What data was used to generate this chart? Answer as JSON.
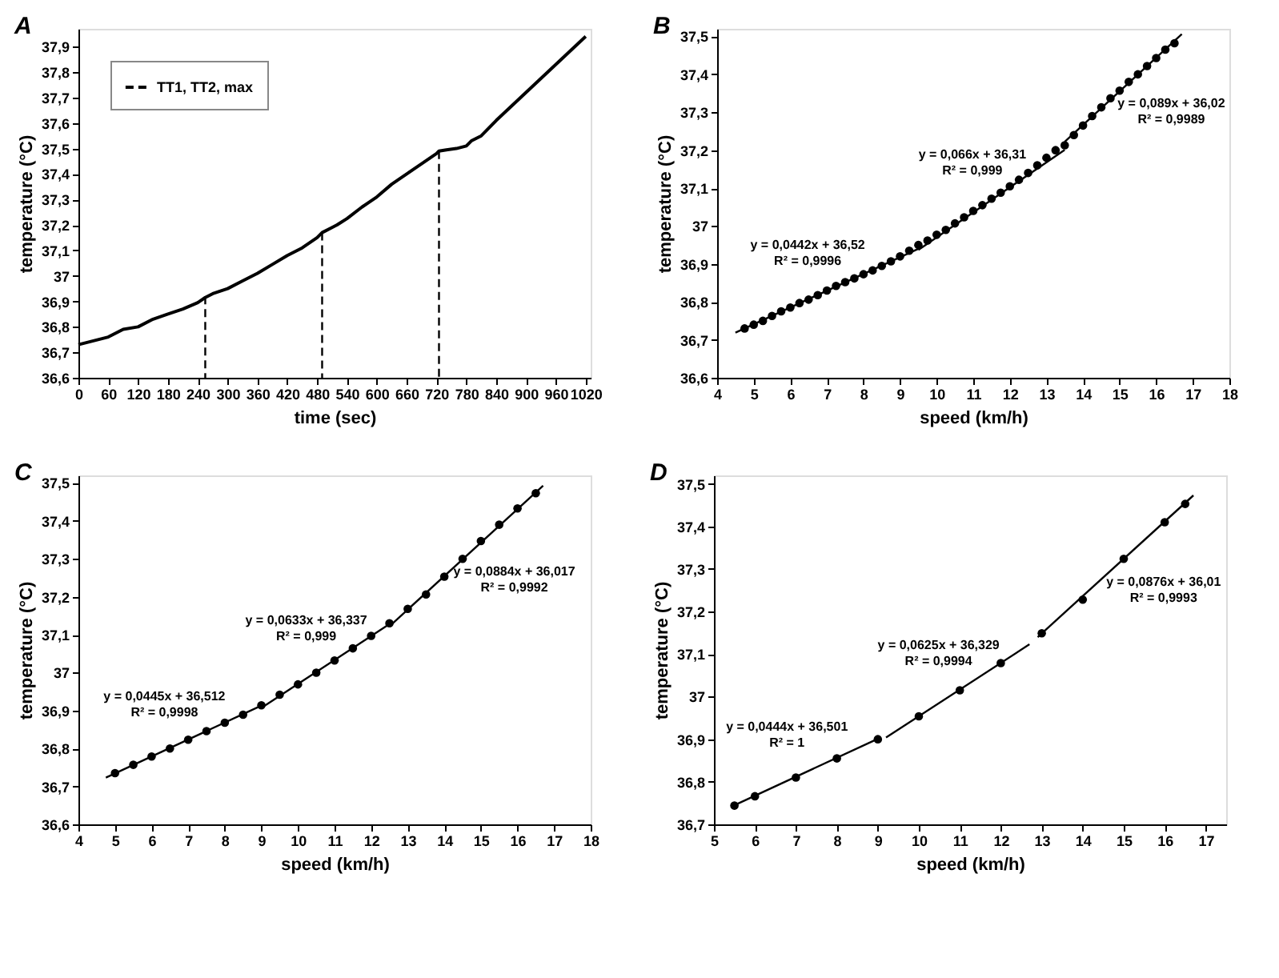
{
  "chart_data": [
    {
      "type": "line",
      "title": "A",
      "xlabel": "time (sec)",
      "ylabel": "temperature (°C)",
      "xlim": [
        0,
        1030
      ],
      "ylim": [
        36.6,
        37.97
      ],
      "grid": false,
      "legend": "top left",
      "xticks": [
        0,
        60,
        120,
        180,
        240,
        300,
        360,
        420,
        480,
        540,
        600,
        660,
        720,
        780,
        840,
        900,
        960,
        1020
      ],
      "yticks": [
        {
          "value": 36.6,
          "label": "36,6"
        },
        {
          "value": 36.7,
          "label": "36,7"
        },
        {
          "value": 36.8,
          "label": "36,8"
        },
        {
          "value": 36.9,
          "label": "36,9"
        },
        {
          "value": 37,
          "label": "37"
        },
        {
          "value": 37.1,
          "label": "37,1"
        },
        {
          "value": 37.2,
          "label": "37,2"
        },
        {
          "value": 37.3,
          "label": "37,3"
        },
        {
          "value": 37.4,
          "label": "37,4"
        },
        {
          "value": 37.5,
          "label": "37,5"
        },
        {
          "value": 37.6,
          "label": "37,6"
        },
        {
          "value": 37.7,
          "label": "37,7"
        },
        {
          "value": 37.8,
          "label": "37,8"
        },
        {
          "value": 37.9,
          "label": "37,9"
        }
      ],
      "series": [
        {
          "color": "#000000",
          "x": [
            0,
            30,
            60,
            90,
            120,
            150,
            180,
            210,
            240,
            255,
            270,
            300,
            330,
            360,
            390,
            420,
            450,
            480,
            490,
            510,
            520,
            540,
            570,
            600,
            630,
            660,
            690,
            720,
            725,
            740,
            760,
            780,
            790,
            810,
            840,
            870,
            900,
            930,
            960,
            990,
            1020
          ],
          "values": [
            36.73,
            36.745,
            36.76,
            36.79,
            36.8,
            36.83,
            36.85,
            36.87,
            36.895,
            36.915,
            36.93,
            36.95,
            36.98,
            37.01,
            37.045,
            37.08,
            37.11,
            37.15,
            37.17,
            37.19,
            37.2,
            37.225,
            37.27,
            37.31,
            37.36,
            37.4,
            37.44,
            37.48,
            37.49,
            37.495,
            37.5,
            37.51,
            37.53,
            37.55,
            37.61,
            37.665,
            37.72,
            37.775,
            37.83,
            37.885,
            37.94
          ]
        },
        {
          "name": "TT1, TT2, max",
          "color": "#000000",
          "line_style": "dashed",
          "x": [
            255,
            255,
            null,
            490,
            490,
            null,
            725,
            725
          ],
          "values": [
            36.92,
            36.6,
            null,
            37.17,
            36.6,
            null,
            37.49,
            36.6
          ]
        }
      ]
    },
    {
      "type": "scatter",
      "title": "B",
      "xlabel": "speed (km/h)",
      "ylabel": "temperature (°C)",
      "xlim": [
        4,
        18
      ],
      "ylim": [
        36.6,
        37.52
      ],
      "grid": false,
      "xticks": [
        4,
        5,
        6,
        7,
        8,
        9,
        10,
        11,
        12,
        13,
        14,
        15,
        16,
        17,
        18
      ],
      "yticks": [
        {
          "value": 36.6,
          "label": "36,6"
        },
        {
          "value": 36.7,
          "label": "36,7"
        },
        {
          "value": 36.8,
          "label": "36,8"
        },
        {
          "value": 36.9,
          "label": "36,9"
        },
        {
          "value": 37,
          "label": "37"
        },
        {
          "value": 37.1,
          "label": "37,1"
        },
        {
          "value": 37.2,
          "label": "37,2"
        },
        {
          "value": 37.3,
          "label": "37,3"
        },
        {
          "value": 37.4,
          "label": "37,4"
        },
        {
          "value": 37.5,
          "label": "37,5"
        }
      ],
      "series": [
        {
          "color": "#000000",
          "marker": "circle",
          "x": [
            4.75,
            5,
            5.25,
            5.5,
            5.75,
            6,
            6.25,
            6.5,
            6.75,
            7,
            7.25,
            7.5,
            7.75,
            8,
            8.25,
            8.5,
            8.75,
            9,
            9.25,
            9.5,
            9.75,
            10,
            10.25,
            10.5,
            10.75,
            11,
            11.25,
            11.5,
            11.75,
            12,
            12.25,
            12.5,
            12.75,
            13,
            13.25,
            13.5,
            13.75,
            14,
            14.25,
            14.5,
            14.75,
            15,
            15.25,
            15.5,
            15.75,
            16,
            16.25,
            16.5
          ],
          "values": [
            36.73,
            36.74,
            36.75,
            36.763,
            36.775,
            36.785,
            36.797,
            36.806,
            36.818,
            36.83,
            36.842,
            36.852,
            36.862,
            36.873,
            36.883,
            36.895,
            36.907,
            36.92,
            36.935,
            36.95,
            36.962,
            36.977,
            36.99,
            37.007,
            37.023,
            37.04,
            37.055,
            37.072,
            37.088,
            37.105,
            37.122,
            37.14,
            37.16,
            37.18,
            37.2,
            37.213,
            37.24,
            37.265,
            37.29,
            37.313,
            37.337,
            37.357,
            37.38,
            37.4,
            37.422,
            37.443,
            37.465,
            37.482
          ]
        },
        {
          "type": "line",
          "color": "#000000",
          "x": [
            4.5,
            9.5
          ],
          "values": [
            36.719,
            36.94
          ]
        },
        {
          "type": "line",
          "color": "#000000",
          "x": [
            9.5,
            13.5
          ],
          "values": [
            36.937,
            37.201
          ]
        },
        {
          "type": "line",
          "color": "#000000",
          "x": [
            13.5,
            16.7
          ],
          "values": [
            37.222,
            37.506
          ]
        }
      ],
      "annotations": [
        "y = 0,0442x + 36,52",
        "R² = 0,9996",
        "y = 0,066x + 36,31",
        "R² = 0,999",
        "y = 0,089x + 36,02",
        "R² = 0,9989"
      ]
    },
    {
      "type": "scatter",
      "title": "C",
      "xlabel": "speed (km/h)",
      "ylabel": "temperature (°C)",
      "xlim": [
        4,
        18
      ],
      "ylim": [
        36.6,
        37.52
      ],
      "grid": false,
      "xticks": [
        4,
        5,
        6,
        7,
        8,
        9,
        10,
        11,
        12,
        13,
        14,
        15,
        16,
        17,
        18
      ],
      "yticks": [
        {
          "value": 36.6,
          "label": "36,6"
        },
        {
          "value": 36.7,
          "label": "36,7"
        },
        {
          "value": 36.8,
          "label": "36,8"
        },
        {
          "value": 36.9,
          "label": "36,9"
        },
        {
          "value": 37,
          "label": "37"
        },
        {
          "value": 37.1,
          "label": "37,1"
        },
        {
          "value": 37.2,
          "label": "37,2"
        },
        {
          "value": 37.3,
          "label": "37,3"
        },
        {
          "value": 37.4,
          "label": "37,4"
        },
        {
          "value": 37.5,
          "label": "37,5"
        }
      ],
      "series": [
        {
          "color": "#000000",
          "marker": "circle",
          "x": [
            5,
            5.5,
            6,
            6.5,
            7,
            7.5,
            8,
            8.5,
            9,
            9.5,
            10,
            10.5,
            11,
            11.5,
            12,
            12.5,
            13,
            13.5,
            14,
            14.5,
            15,
            15.5,
            16,
            16.5
          ],
          "values": [
            36.735,
            36.757,
            36.779,
            36.8,
            36.823,
            36.846,
            36.868,
            36.889,
            36.914,
            36.942,
            36.969,
            37.0,
            37.032,
            37.064,
            37.097,
            37.13,
            37.168,
            37.206,
            37.253,
            37.3,
            37.347,
            37.39,
            37.433,
            37.473
          ]
        },
        {
          "type": "line",
          "color": "#000000",
          "x": [
            4.75,
            9
          ],
          "values": [
            36.723,
            36.913
          ]
        },
        {
          "type": "line",
          "color": "#000000",
          "x": [
            9,
            12.5
          ],
          "values": [
            36.907,
            37.128
          ]
        },
        {
          "type": "line",
          "color": "#000000",
          "x": [
            12.5,
            16.7
          ],
          "values": [
            37.122,
            37.493
          ]
        }
      ],
      "annotations": [
        "y = 0,0445x + 36,512",
        "R² = 0,9998",
        "y = 0,0633x + 36,337",
        "R² = 0,999",
        "y = 0,0884x + 36,017",
        "R² = 0,9992"
      ]
    },
    {
      "type": "scatter",
      "title": "D",
      "xlabel": "speed (km/h)",
      "ylabel": "temperature (°C)",
      "xlim": [
        5,
        17.5
      ],
      "ylim": [
        36.7,
        37.52
      ],
      "grid": false,
      "xticks": [
        5,
        6,
        7,
        8,
        9,
        10,
        11,
        12,
        13,
        14,
        15,
        16,
        17
      ],
      "yticks": [
        {
          "value": 36.7,
          "label": "36,7"
        },
        {
          "value": 36.8,
          "label": "36,8"
        },
        {
          "value": 36.9,
          "label": "36,9"
        },
        {
          "value": 37,
          "label": "37"
        },
        {
          "value": 37.1,
          "label": "37,1"
        },
        {
          "value": 37.2,
          "label": "37,2"
        },
        {
          "value": 37.3,
          "label": "37,3"
        },
        {
          "value": 37.4,
          "label": "37,4"
        },
        {
          "value": 37.5,
          "label": "37,5"
        }
      ],
      "series": [
        {
          "color": "#000000",
          "marker": "circle",
          "x": [
            5.5,
            6,
            7,
            8,
            9,
            10,
            11,
            12,
            13,
            14,
            15,
            16,
            16.5
          ],
          "values": [
            36.744,
            36.766,
            36.81,
            36.855,
            36.9,
            36.954,
            37.015,
            37.079,
            37.149,
            37.228,
            37.324,
            37.41,
            37.453
          ]
        },
        {
          "type": "line",
          "color": "#000000",
          "x": [
            5.5,
            9
          ],
          "values": [
            36.745,
            36.901
          ]
        },
        {
          "type": "line",
          "color": "#000000",
          "x": [
            9.2,
            12.7
          ],
          "values": [
            36.904,
            37.123
          ]
        },
        {
          "type": "line",
          "color": "#000000",
          "x": [
            12.9,
            16.7
          ],
          "values": [
            37.14,
            37.473
          ]
        }
      ],
      "annotations": [
        "y = 0,0444x + 36,501",
        "R² = 1",
        "y = 0,0625x + 36,329",
        "R² = 0,9994",
        "y = 0,0876x + 36,01",
        "R² = 0,9993"
      ]
    }
  ]
}
